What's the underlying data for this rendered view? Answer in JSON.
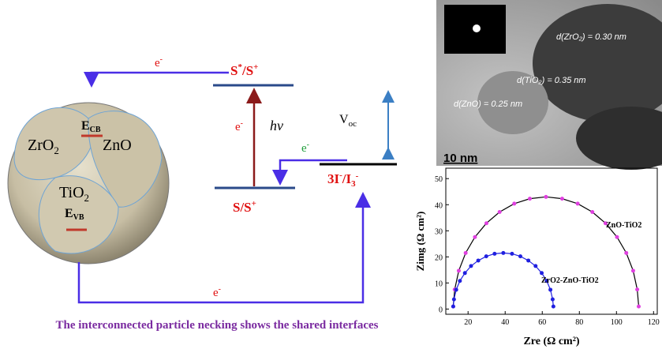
{
  "diagram": {
    "e_top": {
      "t": "e",
      "sup": "-"
    },
    "s_excited": {
      "t": "S",
      "sup": "*",
      "t2": "/S",
      "sup2": "+"
    },
    "s_ground": {
      "t": "S/S",
      "sup": "+"
    },
    "e_mid": {
      "t": "e",
      "sup": "-"
    },
    "hv": "hv",
    "e_green": {
      "t": "e",
      "sup": "-"
    },
    "voc": {
      "t": "V",
      "sub": "oc"
    },
    "redox": {
      "t": "3I",
      "sup": "-",
      "t2": "/I",
      "sub2": "3",
      "sup2": "-"
    },
    "e_bottom": {
      "t": "e",
      "sup": "-"
    },
    "zro2": {
      "t": "ZrO",
      "sub": "2"
    },
    "zno": "ZnO",
    "tio2": {
      "t": "TiO",
      "sub": "2"
    },
    "ecb": {
      "t": "E",
      "sub": "CB"
    },
    "evb": {
      "t": "E",
      "sub": "VB"
    },
    "caption": "The interconnected particle necking shows the shared interfaces"
  },
  "micrograph": {
    "d_zro2": "d(ZrO₂) = 0.30 nm",
    "d_tio2": "d(TiO₂) = 0.35 nm",
    "d_zno": "d(ZnO) = 0.25 nm",
    "scale": "10 nm"
  },
  "chart_data": {
    "type": "scatter",
    "x_label": "Zre (Ω cm²)",
    "y_label": "Zimg (Ω cm²)",
    "xlim": [
      8,
      122
    ],
    "xticks": [
      20,
      40,
      60,
      80,
      100,
      120
    ],
    "ylim": [
      -2,
      54
    ],
    "yticks": [
      0,
      10,
      20,
      30,
      40,
      50
    ],
    "series": [
      {
        "name": "ZnO-TiO2",
        "color": "#e040e0",
        "line_color": "#000000",
        "x": [
          12,
          12.8,
          15,
          18.7,
          23.7,
          29.9,
          37,
          44.9,
          53.3,
          62,
          70.7,
          79.1,
          87,
          94.1,
          100.3,
          105.3,
          109,
          111.2,
          112
        ],
        "values": [
          1,
          7.5,
          14.7,
          21.5,
          27.6,
          32.9,
          37.2,
          40.4,
          42.3,
          43,
          42.3,
          40.4,
          37.2,
          32.9,
          27.6,
          21.5,
          14.7,
          7.5,
          1
        ]
      },
      {
        "name": "ZrO2-ZnO-TiO2",
        "color": "#2020e0",
        "line_color": "#2020e0",
        "x": [
          12,
          12.4,
          13.6,
          15.6,
          18.3,
          21.6,
          25.5,
          29.8,
          34.3,
          39,
          43.7,
          48.2,
          52.5,
          56.4,
          59.7,
          62.4,
          64.4,
          65.6,
          66
        ],
        "values": [
          1,
          3.7,
          7.4,
          10.8,
          13.8,
          16.5,
          18.6,
          20.2,
          21.2,
          21.5,
          21.2,
          20.2,
          18.6,
          16.5,
          13.8,
          10.8,
          7.4,
          3.7,
          1
        ]
      }
    ]
  }
}
